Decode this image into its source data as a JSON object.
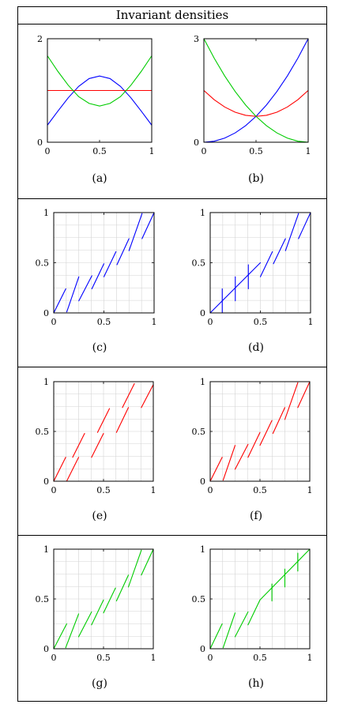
{
  "title": "Invariant densities",
  "colors": {
    "blue": "#0000ff",
    "red": "#ff0000",
    "green": "#00cc00",
    "grid": "#d3d3d3"
  },
  "chart_data": [
    {
      "id": "a",
      "caption": "(a)",
      "type": "line",
      "grid": false,
      "xlim": [
        0,
        1
      ],
      "ylim": [
        0,
        2
      ],
      "xticks": [
        0,
        0.5,
        1
      ],
      "xticklabels": [
        "0",
        "0.5",
        "1"
      ],
      "yticks": [
        0,
        2
      ],
      "yticklabels": [
        "0",
        "2"
      ],
      "series": [
        {
          "color": "blue",
          "x": [
            0,
            0.1,
            0.2,
            0.3,
            0.4,
            0.5,
            0.6,
            0.7,
            0.8,
            0.9,
            1
          ],
          "y": [
            0.33,
            0.6,
            0.86,
            1.08,
            1.23,
            1.28,
            1.23,
            1.08,
            0.86,
            0.6,
            0.33
          ]
        },
        {
          "color": "red",
          "x": [
            0,
            1
          ],
          "y": [
            1,
            1
          ]
        },
        {
          "color": "green",
          "x": [
            0,
            0.1,
            0.2,
            0.3,
            0.4,
            0.5,
            0.6,
            0.7,
            0.8,
            0.9,
            1
          ],
          "y": [
            1.67,
            1.37,
            1.1,
            0.88,
            0.75,
            0.7,
            0.75,
            0.88,
            1.1,
            1.37,
            1.67
          ]
        }
      ]
    },
    {
      "id": "b",
      "caption": "(b)",
      "type": "line",
      "grid": false,
      "xlim": [
        0,
        1
      ],
      "ylim": [
        0,
        3
      ],
      "xticks": [
        0,
        0.5,
        1
      ],
      "xticklabels": [
        "0",
        "0.5",
        "1"
      ],
      "yticks": [
        0,
        3
      ],
      "yticklabels": [
        "0",
        "3"
      ],
      "series": [
        {
          "color": "blue",
          "x": [
            0,
            0.1,
            0.2,
            0.3,
            0.4,
            0.5,
            0.6,
            0.7,
            0.8,
            0.9,
            1
          ],
          "y": [
            0,
            0.03,
            0.12,
            0.27,
            0.48,
            0.75,
            1.08,
            1.47,
            1.92,
            2.43,
            3
          ]
        },
        {
          "color": "red",
          "x": [
            0,
            0.1,
            0.2,
            0.3,
            0.4,
            0.5,
            0.6,
            0.7,
            0.8,
            0.9,
            1
          ],
          "y": [
            1.5,
            1.23,
            1.02,
            0.87,
            0.78,
            0.75,
            0.78,
            0.87,
            1.02,
            1.23,
            1.5
          ]
        },
        {
          "color": "green",
          "x": [
            0,
            0.1,
            0.2,
            0.3,
            0.4,
            0.5,
            0.6,
            0.7,
            0.8,
            0.9,
            1
          ],
          "y": [
            3,
            2.43,
            1.92,
            1.47,
            1.08,
            0.75,
            0.48,
            0.27,
            0.12,
            0.03,
            0
          ]
        }
      ]
    },
    {
      "id": "c",
      "caption": "(c)",
      "type": "line",
      "grid": true,
      "color": "blue",
      "xlim": [
        0,
        1
      ],
      "ylim": [
        0,
        1
      ],
      "xticks": [
        0,
        0.5,
        1
      ],
      "xticklabels": [
        "0",
        "0.5",
        "1"
      ],
      "yticks": [
        0,
        0.5,
        1
      ],
      "yticklabels": [
        "0",
        "0.5",
        "1"
      ],
      "segments": [
        [
          [
            0.0,
            0.0
          ],
          [
            0.12,
            0.24
          ]
        ],
        [
          [
            0.13,
            0.01
          ],
          [
            0.25,
            0.36
          ]
        ],
        [
          [
            0.25,
            0.12
          ],
          [
            0.38,
            0.37
          ]
        ],
        [
          [
            0.38,
            0.24
          ],
          [
            0.5,
            0.49
          ]
        ],
        [
          [
            0.5,
            0.36
          ],
          [
            0.62,
            0.61
          ]
        ],
        [
          [
            0.63,
            0.48
          ],
          [
            0.75,
            0.74
          ]
        ],
        [
          [
            0.75,
            0.62
          ],
          [
            0.88,
            0.99
          ]
        ],
        [
          [
            0.88,
            0.74
          ],
          [
            1.0,
            1.0
          ]
        ]
      ]
    },
    {
      "id": "d",
      "caption": "(d)",
      "type": "line",
      "grid": true,
      "color": "blue",
      "xlim": [
        0,
        1
      ],
      "ylim": [
        0,
        1
      ],
      "xticks": [
        0,
        0.5,
        1
      ],
      "xticklabels": [
        "0",
        "0.5",
        "1"
      ],
      "yticks": [
        0,
        0.5,
        1
      ],
      "yticklabels": [
        "0",
        "0.5",
        "1"
      ],
      "segments": [
        [
          [
            0.0,
            0.0
          ],
          [
            0.5,
            0.5
          ]
        ],
        [
          [
            0.12,
            0.0
          ],
          [
            0.12,
            0.24
          ]
        ],
        [
          [
            0.25,
            0.12
          ],
          [
            0.25,
            0.36
          ]
        ],
        [
          [
            0.38,
            0.24
          ],
          [
            0.38,
            0.48
          ]
        ],
        [
          [
            0.5,
            0.36
          ],
          [
            0.62,
            0.61
          ]
        ],
        [
          [
            0.63,
            0.49
          ],
          [
            0.75,
            0.74
          ]
        ],
        [
          [
            0.75,
            0.62
          ],
          [
            0.88,
            0.99
          ]
        ],
        [
          [
            0.88,
            0.74
          ],
          [
            1.0,
            1.0
          ]
        ]
      ]
    },
    {
      "id": "e",
      "caption": "(e)",
      "type": "line",
      "grid": true,
      "color": "red",
      "xlim": [
        0,
        1
      ],
      "ylim": [
        0,
        1
      ],
      "xticks": [
        0,
        0.5,
        1
      ],
      "xticklabels": [
        "0",
        "0.5",
        "1"
      ],
      "yticks": [
        0,
        0.5,
        1
      ],
      "yticklabels": [
        "0",
        "0.5",
        "1"
      ],
      "segments": [
        [
          [
            0.0,
            0.0
          ],
          [
            0.12,
            0.24
          ]
        ],
        [
          [
            0.13,
            0.0
          ],
          [
            0.25,
            0.24
          ]
        ],
        [
          [
            0.19,
            0.24
          ],
          [
            0.31,
            0.48
          ]
        ],
        [
          [
            0.38,
            0.24
          ],
          [
            0.5,
            0.48
          ]
        ],
        [
          [
            0.44,
            0.49
          ],
          [
            0.56,
            0.73
          ]
        ],
        [
          [
            0.63,
            0.49
          ],
          [
            0.75,
            0.74
          ]
        ],
        [
          [
            0.69,
            0.74
          ],
          [
            0.81,
            0.98
          ]
        ],
        [
          [
            0.88,
            0.74
          ],
          [
            1.0,
            0.97
          ]
        ]
      ]
    },
    {
      "id": "f",
      "caption": "(f)",
      "type": "line",
      "grid": true,
      "color": "red",
      "xlim": [
        0,
        1
      ],
      "ylim": [
        0,
        1
      ],
      "xticks": [
        0,
        0.5,
        1
      ],
      "xticklabels": [
        "0",
        "0.5",
        "1"
      ],
      "yticks": [
        0,
        0.5,
        1
      ],
      "yticklabels": [
        "0",
        "0.5",
        "1"
      ],
      "segments": [
        [
          [
            0.0,
            0.0
          ],
          [
            0.12,
            0.24
          ]
        ],
        [
          [
            0.13,
            0.01
          ],
          [
            0.25,
            0.36
          ]
        ],
        [
          [
            0.25,
            0.12
          ],
          [
            0.38,
            0.37
          ]
        ],
        [
          [
            0.38,
            0.24
          ],
          [
            0.5,
            0.49
          ]
        ],
        [
          [
            0.5,
            0.36
          ],
          [
            0.62,
            0.61
          ]
        ],
        [
          [
            0.63,
            0.48
          ],
          [
            0.75,
            0.74
          ]
        ],
        [
          [
            0.75,
            0.62
          ],
          [
            0.88,
            0.99
          ]
        ],
        [
          [
            0.88,
            0.74
          ],
          [
            1.0,
            1.0
          ]
        ]
      ]
    },
    {
      "id": "g",
      "caption": "(g)",
      "type": "line",
      "grid": true,
      "color": "green",
      "xlim": [
        0,
        1
      ],
      "ylim": [
        0,
        1
      ],
      "xticks": [
        0,
        0.5,
        1
      ],
      "xticklabels": [
        "0",
        "0.5",
        "1"
      ],
      "yticks": [
        0,
        0.5,
        1
      ],
      "yticklabels": [
        "0",
        "0.5",
        "1"
      ],
      "segments": [
        [
          [
            0.0,
            0.0
          ],
          [
            0.13,
            0.25
          ]
        ],
        [
          [
            0.12,
            0.01
          ],
          [
            0.25,
            0.35
          ]
        ],
        [
          [
            0.25,
            0.12
          ],
          [
            0.38,
            0.37
          ]
        ],
        [
          [
            0.38,
            0.24
          ],
          [
            0.5,
            0.49
          ]
        ],
        [
          [
            0.5,
            0.36
          ],
          [
            0.62,
            0.61
          ]
        ],
        [
          [
            0.63,
            0.48
          ],
          [
            0.75,
            0.74
          ]
        ],
        [
          [
            0.75,
            0.62
          ],
          [
            0.88,
            0.99
          ]
        ],
        [
          [
            0.88,
            0.74
          ],
          [
            1.0,
            1.0
          ]
        ]
      ]
    },
    {
      "id": "h",
      "caption": "(h)",
      "type": "line",
      "grid": true,
      "color": "green",
      "xlim": [
        0,
        1
      ],
      "ylim": [
        0,
        1
      ],
      "xticks": [
        0,
        0.5,
        1
      ],
      "xticklabels": [
        "0",
        "0.5",
        "1"
      ],
      "yticks": [
        0,
        0.5,
        1
      ],
      "yticklabels": [
        "0",
        "0.5",
        "1"
      ],
      "segments": [
        [
          [
            0.0,
            0.0
          ],
          [
            0.12,
            0.25
          ]
        ],
        [
          [
            0.13,
            0.01
          ],
          [
            0.25,
            0.36
          ]
        ],
        [
          [
            0.25,
            0.12
          ],
          [
            0.38,
            0.37
          ]
        ],
        [
          [
            0.38,
            0.24
          ],
          [
            0.5,
            0.49
          ]
        ],
        [
          [
            0.5,
            0.49
          ],
          [
            1.0,
            1.0
          ]
        ],
        [
          [
            0.62,
            0.48
          ],
          [
            0.62,
            0.65
          ]
        ],
        [
          [
            0.75,
            0.62
          ],
          [
            0.75,
            0.8
          ]
        ],
        [
          [
            0.88,
            0.78
          ],
          [
            0.88,
            0.96
          ]
        ]
      ]
    }
  ]
}
